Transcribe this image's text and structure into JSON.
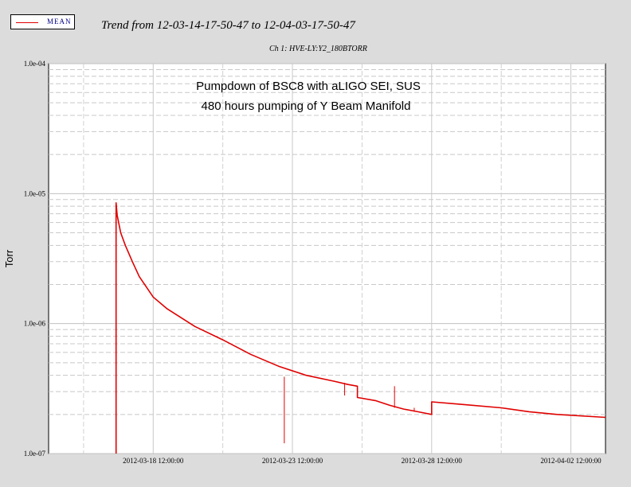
{
  "legend": {
    "label": "MEAN",
    "line_color": "#e00000"
  },
  "header": {
    "title": "Trend from 12-03-14-17-50-47 to 12-04-03-17-50-47",
    "channel": "Ch 1: HVE-LY:Y2_180BTORR"
  },
  "chart_data": {
    "type": "line",
    "ylabel": "Torr",
    "yscale": "log",
    "ylim": [
      1e-07,
      0.0001
    ],
    "xlim": [
      "2012-03-14 17:50:47",
      "2012-04-03 17:50:47"
    ],
    "ytick_labels": [
      "1.0e-04",
      "1.0e-05",
      "1.0e-06",
      "1.0e-07"
    ],
    "yticks": [
      0.0001,
      1e-05,
      1e-06,
      1e-07
    ],
    "xticks": [
      "2012-03-16 00:00:00",
      "2012-03-18 12:00:00",
      "2012-03-21 00:00:00",
      "2012-03-23 12:00:00",
      "2012-03-26 00:00:00",
      "2012-03-28 12:00:00",
      "2012-03-31 00:00:00",
      "2012-04-02 12:00:00"
    ],
    "xtick_labels": [
      "",
      "2012-03-18 12:00:00",
      "",
      "2012-03-23 12:00:00",
      "",
      "2012-03-28 12:00:00",
      "",
      "2012-04-02 12:00:00"
    ],
    "grid": true,
    "annotations": [
      "Pumpdown of BSC8 with aLIGO SEI, SUS",
      "480 hours pumping of Y Beam Manifold"
    ],
    "series": [
      {
        "name": "MEAN",
        "color": "#e00000",
        "points": [
          [
            "2012-03-17 04:00:00",
            1e-07
          ],
          [
            "2012-03-17 04:00:00",
            8.5e-06
          ],
          [
            "2012-03-17 05:00:00",
            6.8e-06
          ],
          [
            "2012-03-17 08:00:00",
            5e-06
          ],
          [
            "2012-03-17 12:00:00",
            4e-06
          ],
          [
            "2012-03-17 18:00:00",
            3e-06
          ],
          [
            "2012-03-18 00:00:00",
            2.3e-06
          ],
          [
            "2012-03-18 12:00:00",
            1.6e-06
          ],
          [
            "2012-03-19 00:00:00",
            1.3e-06
          ],
          [
            "2012-03-20 00:00:00",
            9.5e-07
          ],
          [
            "2012-03-21 00:00:00",
            7.5e-07
          ],
          [
            "2012-03-22 00:00:00",
            5.8e-07
          ],
          [
            "2012-03-23 00:00:00",
            4.7e-07
          ],
          [
            "2012-03-24 00:00:00",
            4e-07
          ],
          [
            "2012-03-25 00:00:00",
            3.6e-07
          ],
          [
            "2012-03-25 12:00:00",
            3.4e-07
          ],
          [
            "2012-03-25 20:00:00",
            3.3e-07
          ],
          [
            "2012-03-25 20:00:00",
            2.7e-07
          ],
          [
            "2012-03-26 12:00:00",
            2.55e-07
          ],
          [
            "2012-03-27 00:00:00",
            2.35e-07
          ],
          [
            "2012-03-27 12:00:00",
            2.2e-07
          ],
          [
            "2012-03-28 00:00:00",
            2.1e-07
          ],
          [
            "2012-03-28 12:00:00",
            2e-07
          ],
          [
            "2012-03-28 12:00:00",
            2.5e-07
          ],
          [
            "2012-03-29 12:00:00",
            2.4e-07
          ],
          [
            "2012-03-31 00:00:00",
            2.25e-07
          ],
          [
            "2012-04-01 00:00:00",
            2.1e-07
          ],
          [
            "2012-04-02 00:00:00",
            2e-07
          ],
          [
            "2012-04-03 17:50:47",
            1.9e-07
          ]
        ],
        "spikes": [
          [
            "2012-03-23 05:00:00",
            3.9e-07,
            1.2e-07
          ],
          [
            "2012-03-25 09:00:00",
            3.5e-07,
            2.8e-07
          ],
          [
            "2012-03-27 04:00:00",
            2.25e-07,
            3.3e-07
          ],
          [
            "2012-03-27 21:00:00",
            2.1e-07,
            2.25e-07
          ]
        ]
      }
    ]
  }
}
